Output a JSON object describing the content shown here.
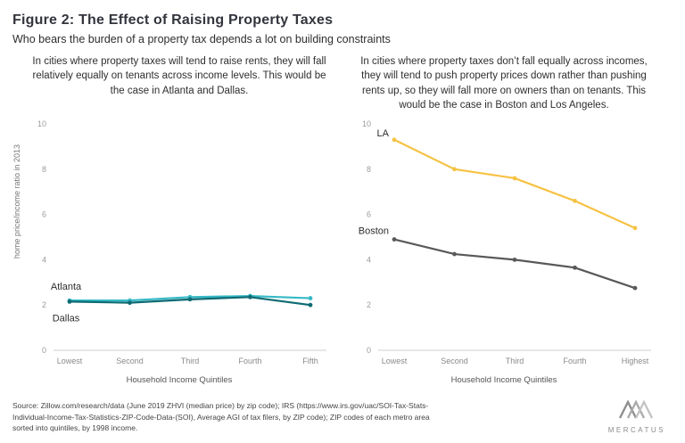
{
  "header": {
    "title": "Figure 2: The Effect of Raising Property Taxes",
    "subtitle": "Who bears the burden of a property tax depends a lot on building constraints"
  },
  "ylabel": "home price/income ratio in 2013",
  "source": "Source: Zillow.com/research/data (June 2019 ZHVI (median price) by zip code); IRS (https://www.irs.gov/uac/SOI-Tax-Stats-Individual-Income-Tax-Statistics-ZIP-Code-Data-(SOI), Average AGI of tax filers, by ZIP code); ZIP codes of each metro area sorted into quintiles, by 1998 income.",
  "logo_text": "MERCATUS",
  "chart_data": [
    {
      "type": "line",
      "title": "In cities where property taxes will tend to raise rents, they will fall relatively equally on tenants across income levels. This would be the case in Atlanta and Dallas.",
      "categories": [
        "Lowest",
        "Second",
        "Third",
        "Fourth",
        "Fifth"
      ],
      "xlabel": "Household Income Quintiles",
      "ylabel": "home price/income ratio in 2013",
      "ylim": [
        0,
        10
      ],
      "yticks": [
        0,
        2,
        4,
        6,
        8,
        10
      ],
      "grid": false,
      "legend": "inline-labels",
      "series": [
        {
          "name": "Atlanta",
          "color": "#35b9c6",
          "values": [
            2.2,
            2.2,
            2.35,
            2.4,
            2.3
          ],
          "label": {
            "dx": -4,
            "dy": -12,
            "anchor": "middle"
          }
        },
        {
          "name": "Dallas",
          "color": "#0f6a72",
          "values": [
            2.15,
            2.1,
            2.25,
            2.35,
            2.0
          ],
          "label": {
            "dx": -4,
            "dy": 22,
            "anchor": "middle"
          }
        }
      ]
    },
    {
      "type": "line",
      "title": "In cities where property taxes don’t fall equally across incomes, they will tend to push property prices down rather than pushing rents up, so they will fall more on owners than on tenants. This would be the case in Boston and Los Angeles.",
      "categories": [
        "Lowest",
        "Second",
        "Third",
        "Fourth",
        "Highest"
      ],
      "xlabel": "Household Income Quintiles",
      "ylim": [
        0,
        10
      ],
      "yticks": [
        0,
        2,
        4,
        6,
        8,
        10
      ],
      "grid": false,
      "legend": "inline-labels",
      "series": [
        {
          "name": "LA",
          "color": "#f6c244",
          "values": [
            9.3,
            8.0,
            7.6,
            6.6,
            5.4
          ],
          "label": {
            "dx": -6,
            "dy": -4,
            "anchor": "end"
          }
        },
        {
          "name": "Boston",
          "color": "#58595b",
          "values": [
            4.9,
            4.25,
            4.0,
            3.65,
            2.75
          ],
          "label": {
            "dx": -6,
            "dy": -6,
            "anchor": "end"
          }
        }
      ]
    }
  ]
}
